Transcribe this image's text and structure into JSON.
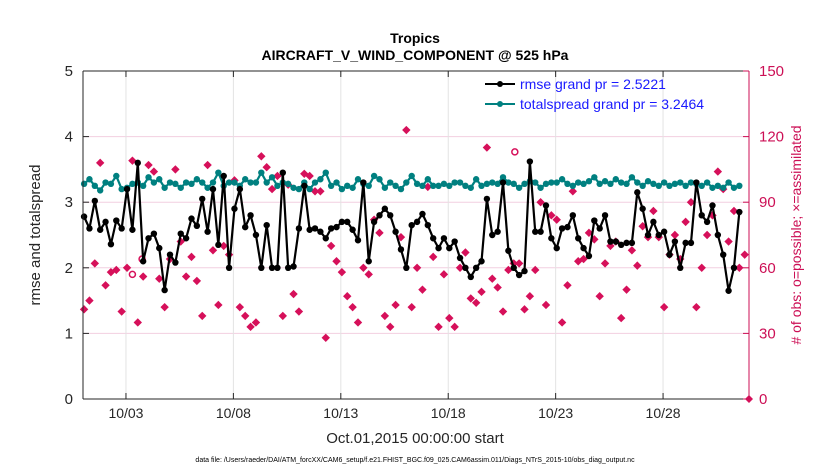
{
  "chart_data": {
    "type": "line",
    "title": "Tropics",
    "subtitle": "AIRCRAFT_V_WIND_COMPONENT @ 525 hPa",
    "xlabel": "Oct.01,2015 00:00:00 start",
    "ylabel": "rmse and totalspread",
    "ylabel_right": "# of obs: o=possible; ×=assimilated",
    "footnote": "data file: /Users/raeder/DAI/ATM_forcXX/CAM6_setup/f.e21.FHIST_BGC.f09_025.CAM6assim.011/Diags_NTrS_2015-10/obs_diag_output.nc",
    "xlim_days": [
      0,
      31
    ],
    "ylim": [
      0,
      5
    ],
    "ylim_right": [
      0,
      150
    ],
    "yticks": [
      "0",
      "1",
      "2",
      "3",
      "4",
      "5"
    ],
    "yticks_right": [
      "0",
      "30",
      "60",
      "90",
      "120",
      "150"
    ],
    "xticks": [
      {
        "day": 2,
        "label": "10/03"
      },
      {
        "day": 7,
        "label": "10/08"
      },
      {
        "day": 12,
        "label": "10/13"
      },
      {
        "day": 17,
        "label": "10/18"
      },
      {
        "day": 22,
        "label": "10/23"
      },
      {
        "day": 27,
        "label": "10/28"
      }
    ],
    "grid": true,
    "legend_position": "top-right",
    "x_start_day": 0.05,
    "x_step_days": 0.25,
    "series": [
      {
        "name": "rmse grand pr = 2.5221",
        "color": "#000000",
        "values": [
          2.78,
          2.6,
          3.02,
          2.58,
          2.7,
          2.36,
          2.72,
          2.6,
          3.2,
          2.58,
          3.6,
          2.1,
          2.45,
          2.52,
          2.3,
          1.66,
          2.2,
          2.08,
          2.52,
          2.45,
          2.75,
          2.64,
          3.05,
          2.55,
          3.2,
          2.35,
          3.4,
          2.0,
          2.9,
          3.2,
          2.62,
          2.8,
          2.5,
          2.0,
          2.65,
          2.0,
          2.0,
          3.45,
          2.0,
          2.02,
          2.6,
          3.25,
          2.58,
          2.6,
          2.55,
          2.45,
          2.6,
          2.62,
          2.7,
          2.7,
          2.58,
          2.42,
          3.3,
          2.1,
          2.7,
          2.8,
          2.9,
          2.8,
          2.55,
          2.28,
          2.0,
          2.65,
          2.7,
          2.82,
          2.65,
          2.45,
          2.3,
          2.45,
          2.3,
          2.4,
          2.15,
          2.0,
          1.86,
          2.0,
          2.1,
          3.05,
          2.5,
          2.55,
          3.3,
          2.26,
          2.0,
          1.89,
          1.95,
          3.62,
          2.55,
          2.55,
          2.95,
          2.45,
          2.3,
          2.6,
          2.62,
          2.8,
          2.45,
          2.3,
          2.18,
          2.72,
          2.6,
          2.8,
          2.4,
          2.4,
          2.35,
          2.38,
          2.38,
          3.15,
          2.9,
          2.5,
          2.7,
          2.5,
          2.55,
          2.2,
          2.4,
          2.0,
          2.38,
          2.38,
          3.3,
          2.8,
          2.7,
          2.95,
          2.5,
          2.2,
          1.65,
          2.0,
          2.85,
          2.4,
          2.1,
          2.5,
          1.85,
          2.7,
          2.2,
          1.95,
          2.5,
          2.75,
          2.45,
          2.8,
          2.75,
          2.5,
          2.7,
          2.6,
          2.85,
          2.7,
          2.25,
          2.6,
          2.4,
          2.5,
          2.3,
          2.35,
          2.4,
          1.95,
          2.55,
          2.6,
          2.5,
          2.7,
          3.0,
          3.2,
          2.4,
          2.0,
          3.15,
          2.1
        ]
      },
      {
        "name": "totalspread grand pr = 3.2464",
        "color": "#008080",
        "values": [
          3.28,
          3.35,
          3.25,
          3.18,
          3.3,
          3.28,
          3.4,
          3.2,
          3.22,
          3.28,
          3.3,
          3.25,
          3.38,
          3.3,
          3.35,
          3.22,
          3.3,
          3.28,
          3.22,
          3.3,
          3.28,
          3.35,
          3.3,
          3.22,
          3.3,
          3.45,
          3.25,
          3.3,
          3.3,
          3.25,
          3.35,
          3.3,
          3.3,
          3.45,
          3.3,
          3.38,
          3.25,
          3.3,
          3.28,
          3.22,
          3.2,
          3.3,
          3.2,
          3.3,
          3.35,
          3.45,
          3.25,
          3.3,
          3.2,
          3.25,
          3.22,
          3.35,
          3.28,
          3.25,
          3.4,
          3.35,
          3.22,
          3.3,
          3.25,
          3.2,
          3.3,
          3.4,
          3.28,
          3.25,
          3.35,
          3.25,
          3.25,
          3.28,
          3.25,
          3.3,
          3.3,
          3.25,
          3.22,
          3.35,
          3.25,
          3.28,
          3.3,
          3.28,
          3.38,
          3.3,
          3.28,
          3.22,
          3.28,
          3.32,
          3.3,
          3.22,
          3.28,
          3.3,
          3.3,
          3.35,
          3.28,
          3.25,
          3.3,
          3.28,
          3.32,
          3.38,
          3.28,
          3.32,
          3.28,
          3.35,
          3.3,
          3.28,
          3.38,
          3.3,
          3.25,
          3.32,
          3.28,
          3.25,
          3.3,
          3.25,
          3.28,
          3.3,
          3.25,
          3.3,
          3.28,
          3.25,
          3.3,
          3.22,
          3.25,
          3.22,
          3.3,
          3.22,
          3.25,
          3.3,
          3.25,
          3.22,
          3.28,
          3.3,
          3.25,
          3.25,
          3.28,
          3.22,
          3.25,
          3.3,
          3.22,
          3.25,
          3.28,
          3.25,
          3.3,
          3.22,
          3.25,
          3.28,
          3.3,
          3.25,
          3.22,
          3.25,
          3.28,
          3.3,
          3.25,
          3.22,
          3.25,
          3.22,
          3.58,
          3.22
        ]
      }
    ],
    "obs_assimilated": {
      "name": "# obs assimilated",
      "color": "#d6105a",
      "x_start_day": 0.05,
      "x_step_days": 0.25,
      "values": [
        41,
        45,
        62,
        108,
        52,
        58,
        59,
        40,
        60,
        109,
        35,
        56,
        107,
        104,
        55,
        42,
        64,
        105,
        72,
        56,
        65,
        54,
        38,
        107,
        68,
        43,
        70,
        66,
        100,
        42,
        38,
        33,
        35,
        111,
        106,
        96,
        102,
        38,
        98,
        48,
        40,
        103,
        102,
        95,
        95,
        28,
        70,
        63,
        58,
        47,
        42,
        35,
        60,
        57,
        82,
        76,
        38,
        33,
        43,
        74,
        123,
        42,
        60,
        50,
        97,
        65,
        33,
        57,
        37,
        33,
        60,
        67,
        46,
        44,
        49,
        115,
        55,
        51,
        40,
        59,
        62,
        62,
        41,
        47,
        59,
        90,
        43,
        84,
        82,
        35,
        52,
        95,
        63,
        64,
        76,
        73,
        47,
        62,
        70,
        72,
        37,
        50,
        68,
        61,
        79,
        74,
        86,
        74,
        42,
        66,
        75,
        64,
        81,
        90,
        42,
        60,
        75,
        84,
        104,
        96,
        72,
        86,
        60,
        66,
        83,
        54,
        64,
        96,
        48,
        72,
        91,
        59,
        66,
        83,
        78,
        69,
        57,
        77,
        66,
        92,
        42,
        34,
        58,
        62,
        88,
        67,
        95,
        42,
        41,
        90,
        92
      ]
    },
    "obs_possible": {
      "name": "# obs possible",
      "marker": "circle",
      "color": "#d6105a",
      "points": [
        {
          "day": 2.3,
          "value": 57
        },
        {
          "day": 2.75,
          "value": 64
        },
        {
          "day": 20.1,
          "value": 113
        }
      ]
    }
  }
}
